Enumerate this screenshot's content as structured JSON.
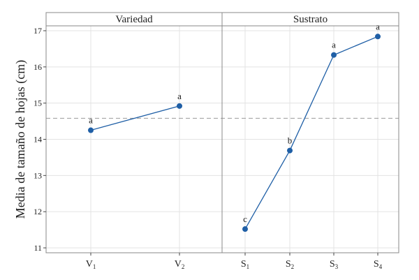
{
  "chart_data": {
    "type": "line",
    "ylabel": "Media de tamaño de hojas (cm)",
    "ylim": [
      11,
      17.15
    ],
    "yticks": [
      11,
      12,
      13,
      14,
      15,
      16,
      17
    ],
    "reference_line": 14.58,
    "grid": true,
    "colors": {
      "series": "#1f5fa6",
      "reference": "#999999",
      "frame": "#888888",
      "grid": "#e3e3e3",
      "header_bg": "#ffffff"
    },
    "panels": [
      {
        "title": "Variedad",
        "categories": [
          {
            "main": "V",
            "sub": "1"
          },
          {
            "main": "V",
            "sub": "2"
          }
        ],
        "values": [
          14.25,
          14.92
        ],
        "letters": [
          "a",
          "a"
        ]
      },
      {
        "title": "Sustrato",
        "categories": [
          {
            "main": "S",
            "sub": "1"
          },
          {
            "main": "S",
            "sub": "2"
          },
          {
            "main": "S",
            "sub": "3"
          },
          {
            "main": "S",
            "sub": "4"
          }
        ],
        "values": [
          11.52,
          13.69,
          16.33,
          16.84
        ],
        "letters": [
          "c",
          "b",
          "a",
          "a"
        ]
      }
    ]
  }
}
